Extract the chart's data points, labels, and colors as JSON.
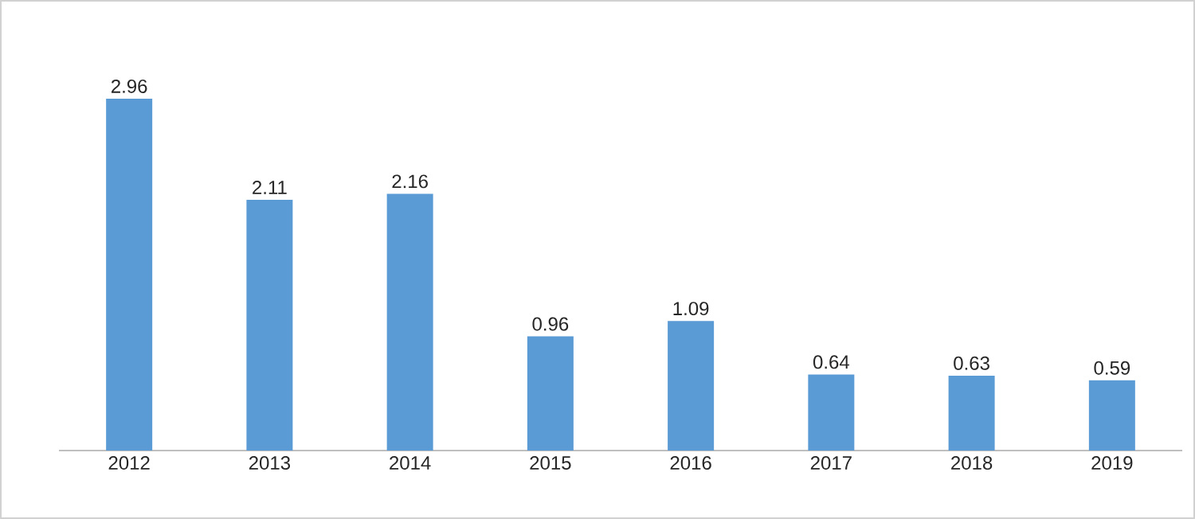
{
  "chart_data": {
    "type": "bar",
    "categories": [
      "2012",
      "2013",
      "2014",
      "2015",
      "2016",
      "2017",
      "2018",
      "2019"
    ],
    "values": [
      2.96,
      2.11,
      2.16,
      0.96,
      1.09,
      0.64,
      0.63,
      0.59
    ],
    "color": "#5b9bd5",
    "data_labels": true
  }
}
